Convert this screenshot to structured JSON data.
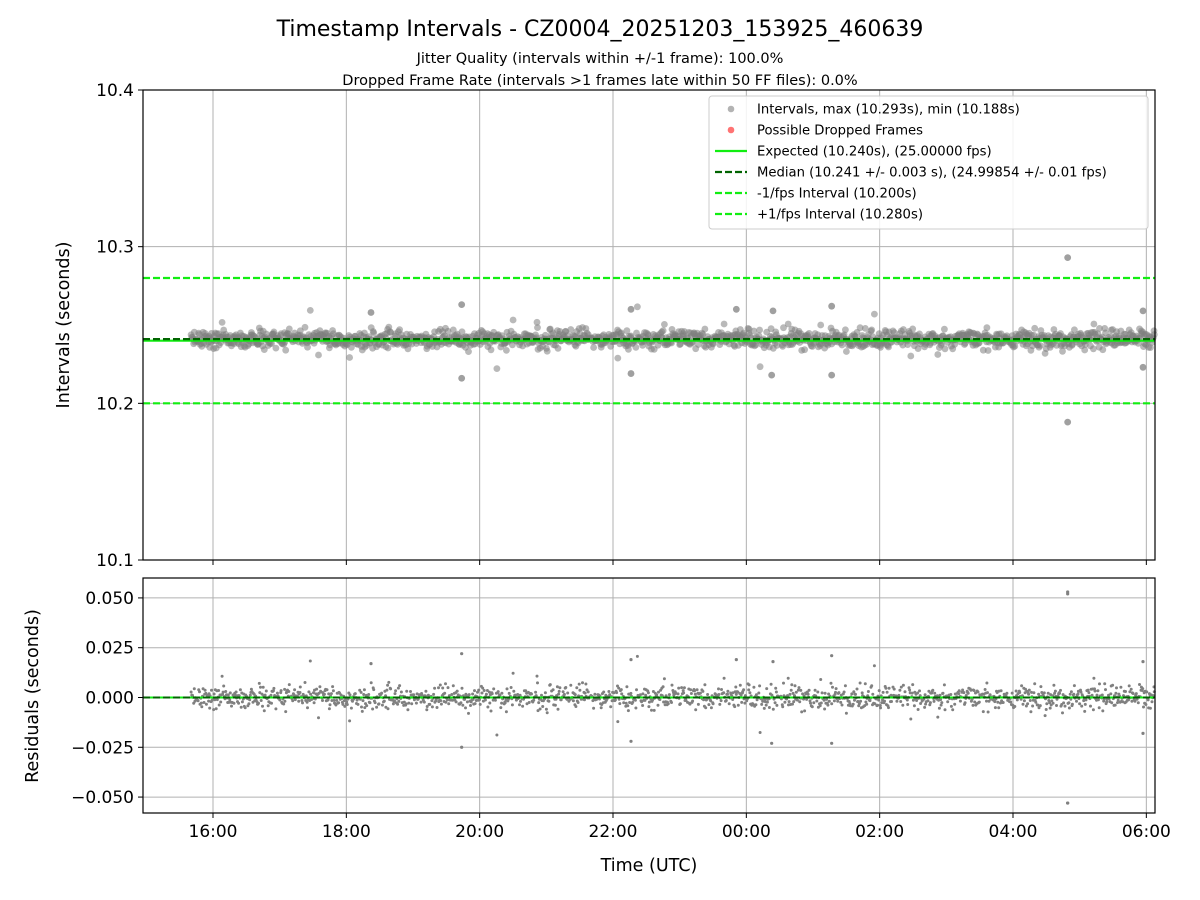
{
  "colors": {
    "intervals": "#808080",
    "dropped": "#ff5a5a",
    "expected": "#11ee11",
    "median": "#006400",
    "bounds": "#11ee11",
    "grid": "#b0b0b0"
  },
  "titles": {
    "main": "Timestamp Intervals - CZ0004_20251203_153925_460639",
    "jitter": "Jitter Quality (intervals within +/-1 frame): 100.0%",
    "dropped": "Dropped Frame Rate (intervals >1 frames late within 50 FF files): 0.0%"
  },
  "legend": {
    "intervals": "Intervals, max (10.293s), min (10.188s)",
    "dropped": "Possible Dropped Frames",
    "expected": "Expected (10.240s), (25.00000 fps)",
    "median": "Median (10.241 +/- 0.003 s), (24.99854 +/- 0.01 fps)",
    "minus": "-1/fps Interval (10.200s)",
    "plus": "+1/fps Interval (10.280s)"
  },
  "chart_data": [
    {
      "type": "scatter",
      "name": "intervals",
      "title": "Timestamp Intervals - CZ0004_20251203_153925_460639",
      "xlabel": "",
      "ylabel": "Intervals (seconds)",
      "x_unit": "hours since 00:00 UTC on first day",
      "xlim": [
        14.95,
        30.13
      ],
      "ylim": [
        10.1,
        10.4
      ],
      "yticks": [
        "10.1",
        "10.2",
        "10.3",
        "10.4"
      ],
      "grid": true,
      "legend_position": "top-right",
      "data_range_x": [
        15.67,
        30.15
      ],
      "center": 10.241,
      "spread_sd": 0.003,
      "series_max": 10.293,
      "series_min": 10.188,
      "notable_points": [
        {
          "x": 28.82,
          "y": 10.293
        },
        {
          "x": 28.82,
          "y": 10.188
        },
        {
          "x": 19.73,
          "y": 10.263
        },
        {
          "x": 19.73,
          "y": 10.216
        },
        {
          "x": 25.28,
          "y": 10.262
        },
        {
          "x": 18.37,
          "y": 10.258
        },
        {
          "x": 22.27,
          "y": 10.26
        },
        {
          "x": 24.4,
          "y": 10.259
        },
        {
          "x": 23.85,
          "y": 10.26
        },
        {
          "x": 22.27,
          "y": 10.219
        },
        {
          "x": 24.38,
          "y": 10.218
        },
        {
          "x": 29.95,
          "y": 10.259
        },
        {
          "x": 29.95,
          "y": 10.223
        },
        {
          "x": 25.28,
          "y": 10.218
        }
      ],
      "reference_lines": [
        {
          "name": "expected",
          "y": 10.24,
          "style": "solid"
        },
        {
          "name": "median",
          "y": 10.241,
          "style": "dashed"
        },
        {
          "name": "minus",
          "y": 10.2,
          "style": "dashed"
        },
        {
          "name": "plus",
          "y": 10.28,
          "style": "dashed"
        }
      ],
      "dropped_frames": []
    },
    {
      "type": "scatter",
      "name": "residuals",
      "xlabel": "Time (UTC)",
      "ylabel": "Residuals (seconds)",
      "x_unit": "hours since 00:00 UTC on first day",
      "xlim": [
        14.95,
        30.13
      ],
      "ylim": [
        -0.058,
        0.06
      ],
      "yticks": [
        {
          "v": 0.05,
          "label": "0.050"
        },
        {
          "v": 0.025,
          "label": "0.025"
        },
        {
          "v": 0.0,
          "label": "0.000"
        },
        {
          "v": -0.025,
          "label": "−0.025"
        },
        {
          "v": -0.05,
          "label": "−0.050"
        }
      ],
      "xticks": [
        {
          "v": 16,
          "label": "16:00"
        },
        {
          "v": 18,
          "label": "18:00"
        },
        {
          "v": 20,
          "label": "20:00"
        },
        {
          "v": 22,
          "label": "22:00"
        },
        {
          "v": 24,
          "label": "00:00"
        },
        {
          "v": 26,
          "label": "02:00"
        },
        {
          "v": 28,
          "label": "04:00"
        },
        {
          "v": 30,
          "label": "06:00"
        }
      ],
      "grid": true,
      "reference_lines": [
        {
          "name": "expected",
          "y": 0.0,
          "style": "solid"
        },
        {
          "name": "median",
          "y": 0.0,
          "style": "dashed"
        }
      ],
      "notable_points": [
        {
          "x": 28.82,
          "y": 0.053
        },
        {
          "x": 28.82,
          "y": -0.053
        }
      ]
    }
  ]
}
